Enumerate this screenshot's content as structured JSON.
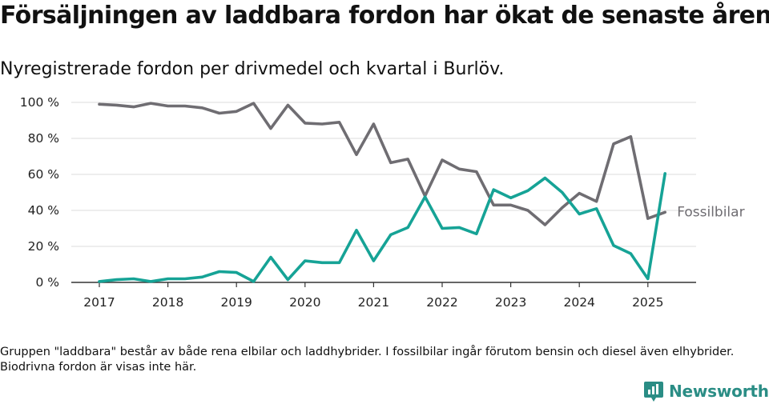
{
  "title": "Försäljningen av laddbara fordon har ökat de senaste åren",
  "subtitle": "Nyregistrerade fordon per drivmedel och kvartal i Burlöv.",
  "footnote": "Gruppen \"laddbara\" består av både rena elbilar och laddhybrider. I fossilbilar ingår förutom bensin och diesel även elhybrider. Biodrivna fordon är visas inte här.",
  "brand": {
    "name": "Newsworthy",
    "icon": "newsworthy-logo-icon",
    "color": "#2a8d85"
  },
  "chart_data": {
    "type": "line",
    "x": [
      "2017K1",
      "2017K2",
      "2017K3",
      "2017K4",
      "2018K1",
      "2018K2",
      "2018K3",
      "2018K4",
      "2019K1",
      "2019K2",
      "2019K3",
      "2019K4",
      "2020K1",
      "2020K2",
      "2020K3",
      "2020K4",
      "2021K1",
      "2021K2",
      "2021K3",
      "2021K4",
      "2022K1",
      "2022K2",
      "2022K3",
      "2022K4",
      "2023K1",
      "2023K2",
      "2023K3",
      "2023K4",
      "2024K1",
      "2024K2",
      "2024K3",
      "2024K4",
      "2025K1",
      "2025K2"
    ],
    "x_tick_labels": [
      "2017",
      "2018",
      "2019",
      "2020",
      "2021",
      "2022",
      "2023",
      "2024",
      "2025"
    ],
    "y_tick_labels": [
      "0 %",
      "20 %",
      "40 %",
      "60 %",
      "80 %",
      "100 %"
    ],
    "ylim": [
      0,
      100
    ],
    "grid": true,
    "series": [
      {
        "name": "Fossilbilar",
        "color": "#6f6d72",
        "values": [
          99,
          98.5,
          97.5,
          99.5,
          98,
          98,
          97,
          94,
          95,
          99.5,
          85.5,
          98.5,
          88.5,
          88,
          89,
          71,
          88,
          66.5,
          68.5,
          48,
          68,
          63,
          61.5,
          43,
          43,
          40,
          32,
          41.5,
          49.5,
          45,
          77,
          81,
          35.5,
          39
        ]
      },
      {
        "name": "",
        "color": "#16a396",
        "values": [
          0.5,
          1.5,
          2,
          0.5,
          2,
          2,
          3,
          6,
          5.5,
          0.5,
          14,
          1.5,
          12,
          11,
          11,
          29,
          12,
          26.5,
          30.5,
          47.5,
          30,
          30.5,
          27,
          51.5,
          47,
          51,
          58,
          50,
          38,
          41,
          20.5,
          16,
          2,
          60.5
        ]
      }
    ]
  }
}
